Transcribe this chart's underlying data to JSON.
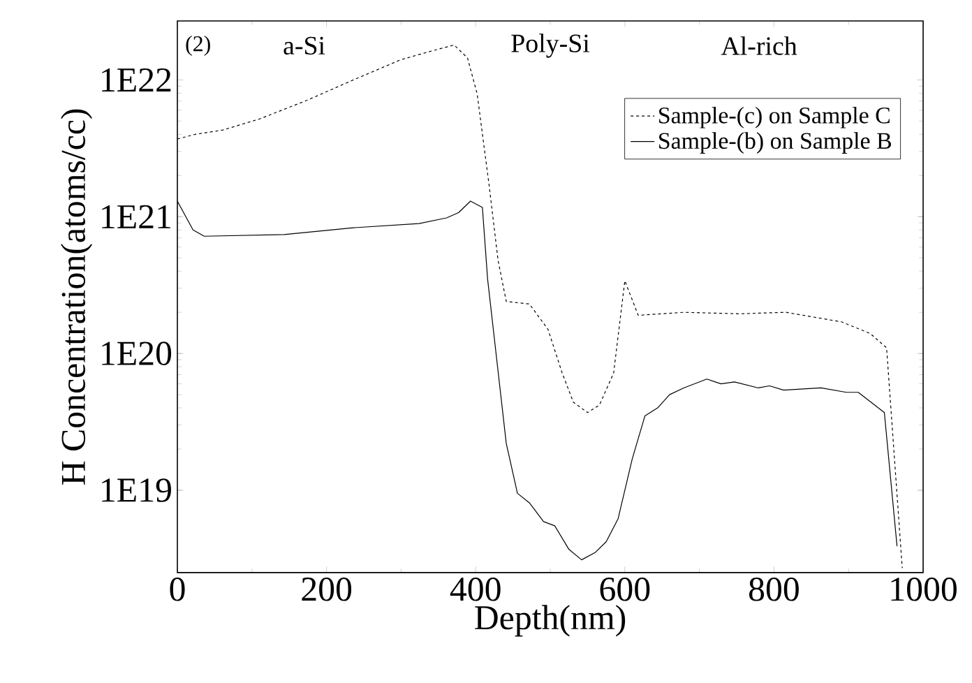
{
  "chart_data": {
    "type": "line",
    "xlabel": "Depth(nm)",
    "ylabel": "H Concentration(atoms/cc)",
    "annotations": [
      "(2)",
      "a-Si",
      "Poly-Si",
      "Al-rich"
    ],
    "log": "y",
    "grid": false,
    "legend": "top right",
    "marker": "none",
    "xlim": [
      0,
      1000
    ],
    "xticks": [
      0,
      200,
      400,
      600,
      800,
      1000
    ],
    "ylim": [
      2.5e+18,
      2.7e+22
    ],
    "yticks": [
      {
        "value": 1e+19,
        "label": "1E19"
      },
      {
        "value": 1e+20,
        "label": "1E20"
      },
      {
        "value": 1e+21,
        "label": "1E21"
      },
      {
        "value": 1e+22,
        "label": "1E22"
      }
    ],
    "series": [
      {
        "name": "Sample-(c) on Sample C",
        "color": "#000000",
        "line_style": "dashed",
        "x": [
          0,
          24,
          61,
          111,
          174,
          236,
          299,
          336,
          371,
          389,
          402,
          418,
          430,
          441,
          472,
          497,
          516,
          531,
          550,
          566,
          585,
          600,
          618,
          679,
          754,
          816,
          891,
          929,
          951,
          972
        ],
        "values": [
          3.7e+21,
          4e+21,
          4.3e+21,
          5.2e+21,
          7.1e+21,
          1e+22,
          1.4e+22,
          1.6e+22,
          1.8e+22,
          1.45e+22,
          7.9e+21,
          1.7e+21,
          4.8e+20,
          2.4e+20,
          2.3e+20,
          1.5e+20,
          7.2e+19,
          4.4e+19,
          3.7e+19,
          4.2e+19,
          7.2e+19,
          3.4e+20,
          1.9e+20,
          2e+20,
          1.95e+20,
          2e+20,
          1.7e+20,
          1.4e+20,
          1.1e+20,
          2.7e+18
        ]
      },
      {
        "name": "Sample-(b) on Sample B",
        "color": "#000000",
        "line_style": "solid",
        "x": [
          0,
          21,
          36,
          143,
          236,
          324,
          361,
          377,
          393,
          409,
          416,
          441,
          456,
          472,
          491,
          506,
          525,
          542,
          560,
          575,
          591,
          610,
          627,
          644,
          660,
          679,
          710,
          729,
          747,
          779,
          794,
          813,
          863,
          897,
          913,
          948,
          965
        ],
        "values": [
          1.3e+21,
          8e+20,
          7.2e+20,
          7.4e+20,
          8.3e+20,
          8.9e+20,
          9.8e+20,
          1.07e+21,
          1.3e+21,
          1.17e+21,
          3.5e+20,
          2.2e+19,
          9.5e+18,
          8.1e+18,
          5.9e+18,
          5.5e+18,
          3.7e+18,
          3.1e+18,
          3.5e+18,
          4.2e+18,
          6.2e+18,
          1.7e+19,
          3.5e+19,
          4e+19,
          5e+19,
          5.6e+19,
          6.5e+19,
          6e+19,
          6.2e+19,
          5.6e+19,
          5.8e+19,
          5.4e+19,
          5.6e+19,
          5.2e+19,
          5.2e+19,
          3.7e+19,
          3.9e+18
        ]
      }
    ]
  }
}
